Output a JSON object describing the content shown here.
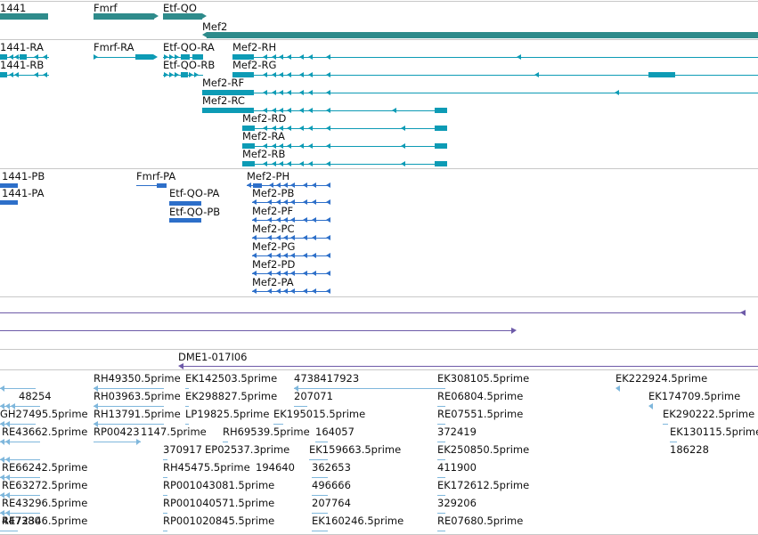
{
  "colors": {
    "gene": "#2e8b8b",
    "rna": "#0d9bb5",
    "protein": "#2d6fc9",
    "transposon": "#6d5aa8",
    "est": "#7fb7dc"
  },
  "tracks": {
    "genes": {
      "labels": [
        "1441",
        "Fmrf",
        "Etf-QO",
        "Mef2"
      ]
    },
    "transcripts": {
      "labels": [
        "1441-RA",
        "1441-RB",
        "Fmrf-RA",
        "Etf-QO-RA",
        "Etf-QO-RB",
        "Mef2-RH",
        "Mef2-RG",
        "Mef2-RF",
        "Mef2-RC",
        "Mef2-RD",
        "Mef2-RA",
        "Mef2-RB"
      ]
    },
    "proteins": {
      "labels": [
        "1441-PB",
        "1441-PA",
        "Fmrf-PA",
        "Etf-QO-PA",
        "Etf-QO-PB",
        "Mef2-PH",
        "Mef2-PB",
        "Mef2-PF",
        "Mef2-PC",
        "Mef2-PG",
        "Mef2-PD",
        "Mef2-PA"
      ]
    },
    "clone": {
      "label": "DME1-017I06"
    },
    "ests": {
      "labels": [
        "RH49350.5prime",
        "EK142503.5prime",
        "4738417923",
        "EK308105.5prime",
        "EK222924.5prime",
        "48254",
        "RH03963.5prime",
        "EK298827.5prime",
        "207071",
        "RE06804.5prime",
        "EK174709.5prime",
        "GH27495.5prime",
        "RH13791.5prime",
        "LP19825.5prime",
        "EK195015.5prime",
        "RE07551.5prime",
        "EK290222.5prime",
        "RE43662.5prime",
        "RP00423",
        "1147.5prime",
        "RH69539.5prime",
        "164057",
        "372419",
        "EK130115.5prime",
        "370917",
        "EP02537.3prime",
        "EK159663.5prime",
        "EK250850.5prime",
        "186228",
        "RE66242.5prime",
        "RH45475.5prime",
        "194640",
        "362653",
        "411900",
        "RE63272.5prime",
        "RP001043081.5prime",
        "496666",
        "EK172612.5prime",
        "RE43296.5prime",
        "RP001040571.5prime",
        "207764",
        "329206",
        "RE72346.5prime",
        "RP001020845.5prime",
        "EK160246.5prime",
        "RE07680.5prime",
        "447380"
      ]
    }
  }
}
